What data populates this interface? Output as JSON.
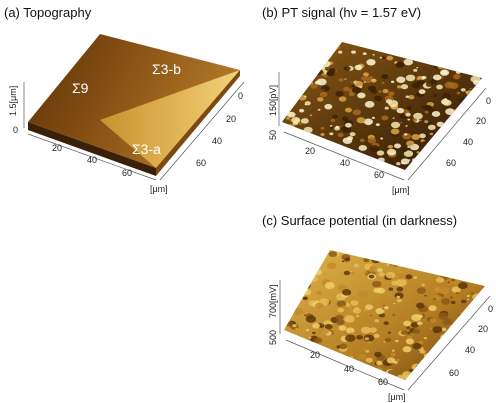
{
  "panels": [
    {
      "title": "(a) Topography",
      "z_axis": {
        "label": "1.5[μm]",
        "ticks": [
          "0"
        ]
      },
      "x_ticks": [
        "20",
        "40",
        "60"
      ],
      "y_ticks": [
        "0",
        "20",
        "40",
        "60"
      ],
      "unit": "[μm]",
      "annotations": [
        "Σ9",
        "Σ3-b",
        "Σ3-a"
      ]
    },
    {
      "title": "(b) PT signal (hν = 1.57 eV)",
      "z_axis": {
        "label": "150[pV]",
        "ticks": [
          "50"
        ]
      },
      "x_ticks": [
        "20",
        "40",
        "60"
      ],
      "y_ticks": [
        "0",
        "20",
        "40",
        "60"
      ],
      "unit": "[μm]"
    },
    {
      "title": "(c) Surface potential (in darkness)",
      "z_axis": {
        "label": "700[mV]",
        "ticks": [
          "500"
        ]
      },
      "x_ticks": [
        "20",
        "40",
        "60"
      ],
      "y_ticks": [
        "0",
        "20",
        "40",
        "60"
      ],
      "unit": "[μm]"
    }
  ]
}
